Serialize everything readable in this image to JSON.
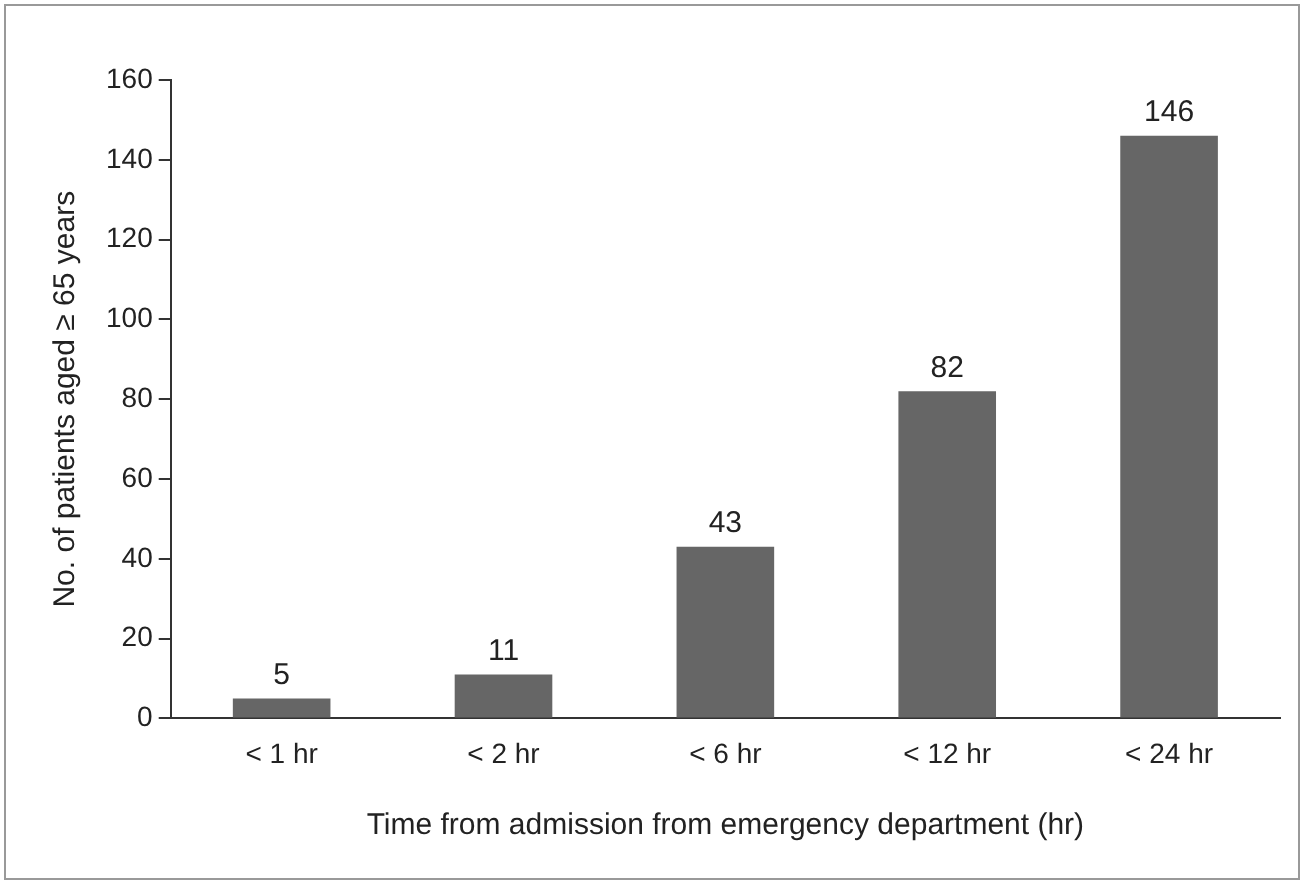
{
  "chart_data": {
    "type": "bar",
    "xlabel": "Time from admission from emergency department (hr)",
    "ylabel": "No. of patients aged ≥ 65 years",
    "categories": [
      "< 1 hr",
      "< 2 hr",
      "< 6 hr",
      "< 12 hr",
      "< 24 hr"
    ],
    "values": [
      5,
      11,
      43,
      82,
      146
    ],
    "color": "#666666",
    "ylim": [
      0,
      160
    ],
    "yticks": [
      0,
      20,
      40,
      60,
      80,
      100,
      120,
      140,
      160
    ],
    "grid": false,
    "legend": false,
    "data_labels": true
  }
}
